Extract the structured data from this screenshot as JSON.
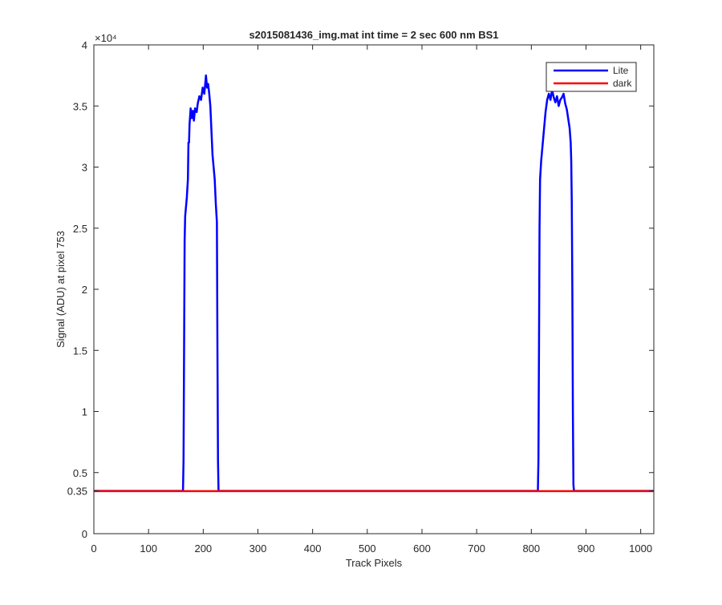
{
  "chart_data": {
    "type": "line",
    "title": "s2015081436_img.mat int time = 2 sec  600 nm BS1",
    "xlabel": "Track Pixels",
    "ylabel": "Signal (ADU) at pixel 753",
    "xlim": [
      0,
      1024
    ],
    "ylim": [
      0,
      40000
    ],
    "y_exponent_label": "×10⁴",
    "xticks": [
      0,
      100,
      200,
      300,
      400,
      500,
      600,
      700,
      800,
      900,
      1000
    ],
    "xtick_labels": [
      "0",
      "100",
      "200",
      "300",
      "400",
      "500",
      "600",
      "700",
      "800",
      "900",
      "1000"
    ],
    "yticks": [
      0,
      3500,
      5000,
      10000,
      15000,
      20000,
      25000,
      30000,
      35000,
      40000
    ],
    "ytick_labels": [
      "0",
      "0.35",
      "0.5",
      "1",
      "1.5",
      "2",
      "2.5",
      "3",
      "3.5",
      "4"
    ],
    "legend_position": "top-right",
    "grid": false,
    "series": [
      {
        "name": "Lite",
        "color": "#0000ff",
        "points": [
          [
            0,
            3500
          ],
          [
            163,
            3500
          ],
          [
            164,
            6000
          ],
          [
            165,
            15000
          ],
          [
            166,
            24000
          ],
          [
            167,
            26000
          ],
          [
            170,
            27500
          ],
          [
            172,
            29000
          ],
          [
            173,
            32000
          ],
          [
            174,
            32000
          ],
          [
            175,
            33500
          ],
          [
            177,
            34800
          ],
          [
            179,
            34000
          ],
          [
            181,
            34600
          ],
          [
            183,
            33800
          ],
          [
            185,
            34800
          ],
          [
            188,
            34500
          ],
          [
            190,
            35200
          ],
          [
            193,
            35800
          ],
          [
            196,
            35500
          ],
          [
            199,
            36500
          ],
          [
            202,
            36000
          ],
          [
            205,
            37500
          ],
          [
            207,
            36500
          ],
          [
            209,
            36800
          ],
          [
            211,
            36000
          ],
          [
            213,
            35000
          ],
          [
            215,
            33000
          ],
          [
            217,
            31000
          ],
          [
            219,
            30000
          ],
          [
            221,
            29000
          ],
          [
            223,
            27000
          ],
          [
            225,
            25500
          ],
          [
            226,
            15000
          ],
          [
            227,
            6000
          ],
          [
            228,
            3500
          ],
          [
            812,
            3500
          ],
          [
            813,
            6000
          ],
          [
            814,
            15000
          ],
          [
            815,
            25000
          ],
          [
            816,
            29000
          ],
          [
            818,
            30500
          ],
          [
            820,
            31500
          ],
          [
            823,
            33000
          ],
          [
            826,
            34500
          ],
          [
            829,
            35500
          ],
          [
            832,
            36000
          ],
          [
            835,
            35500
          ],
          [
            838,
            36300
          ],
          [
            841,
            35700
          ],
          [
            844,
            35300
          ],
          [
            847,
            35800
          ],
          [
            850,
            35000
          ],
          [
            853,
            35500
          ],
          [
            856,
            35700
          ],
          [
            859,
            36000
          ],
          [
            862,
            35200
          ],
          [
            865,
            34700
          ],
          [
            868,
            33800
          ],
          [
            870,
            33200
          ],
          [
            872,
            32000
          ],
          [
            873,
            30500
          ],
          [
            874,
            27000
          ],
          [
            875,
            20000
          ],
          [
            876,
            10000
          ],
          [
            877,
            4000
          ],
          [
            878,
            3500
          ],
          [
            1024,
            3500
          ]
        ]
      },
      {
        "name": "dark",
        "color": "#ff0000",
        "points": [
          [
            0,
            3480
          ],
          [
            1024,
            3480
          ]
        ]
      }
    ]
  }
}
